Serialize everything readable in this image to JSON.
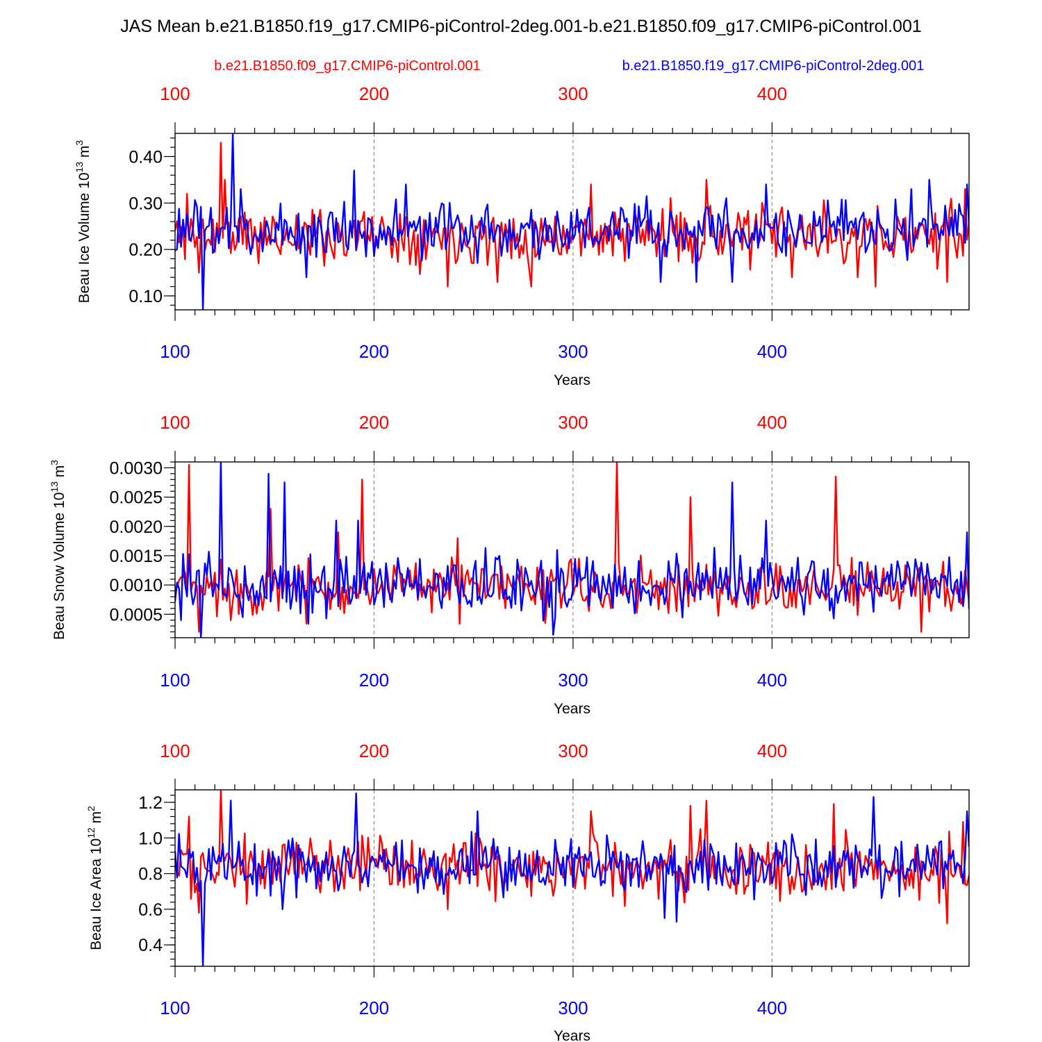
{
  "figure": {
    "title": "JAS Mean b.e21.B1850.f19_g17.CMIP6-piControl-2deg.001-b.e21.B1850.f09_g17.CMIP6-piControl.001",
    "legend": {
      "red_label": "b.e21.B1850.f09_g17.CMIP6-piControl.001",
      "blue_label": "b.e21.B1850.f19_g17.CMIP6-piControl-2deg.001"
    },
    "colors": {
      "red": "#ff0000",
      "blue": "#0000ff",
      "grid": "#777777"
    }
  },
  "chart_data": [
    {
      "type": "line",
      "name": "ice-volume",
      "ylabel_main": "Beau Ice Volume 10",
      "ylabel_exp": "13",
      "ylabel_unit": " m",
      "ylabel_unit_exp": "3",
      "xlabel": "Years",
      "xlim": [
        100,
        499
      ],
      "ylim": [
        0.07,
        0.45
      ],
      "xticks": [
        100,
        200,
        300,
        400
      ],
      "xtick_labels": [
        "100",
        "200",
        "300",
        "400"
      ],
      "yticks": [
        0.1,
        0.2,
        0.3,
        0.4
      ],
      "ytick_labels": [
        "0.10",
        "0.20",
        "0.30",
        "0.40"
      ],
      "series": [
        {
          "name": "b.e21.B1850.f09_g17.CMIP6-piControl.001",
          "color": "red",
          "base": 0.232,
          "amp": 0.045,
          "seed": 11,
          "events": [
            [
              106,
              0.32
            ],
            [
              112,
              0.15
            ],
            [
              123,
              0.43
            ],
            [
              125,
              0.35
            ],
            [
              142,
              0.17
            ],
            [
              237,
              0.12
            ],
            [
              262,
              0.13
            ],
            [
              279,
              0.12
            ],
            [
              309,
              0.34
            ],
            [
              367,
              0.35
            ],
            [
              410,
              0.14
            ],
            [
              443,
              0.14
            ],
            [
              452,
              0.12
            ],
            [
              488,
              0.13
            ],
            [
              497,
              0.33
            ]
          ]
        },
        {
          "name": "b.e21.B1850.f19_g17.CMIP6-piControl-2deg.001",
          "color": "blue",
          "base": 0.24,
          "amp": 0.045,
          "seed": 23,
          "events": [
            [
              114,
              0.07
            ],
            [
              118,
              0.29
            ],
            [
              126,
              0.29
            ],
            [
              129,
              0.45
            ],
            [
              131,
              0.25
            ],
            [
              133,
              0.33
            ],
            [
              166,
              0.14
            ],
            [
              190,
              0.37
            ],
            [
              216,
              0.34
            ],
            [
              344,
              0.13
            ],
            [
              362,
              0.13
            ],
            [
              380,
              0.13
            ],
            [
              397,
              0.34
            ],
            [
              470,
              0.33
            ],
            [
              479,
              0.35
            ],
            [
              498,
              0.34
            ]
          ]
        }
      ]
    },
    {
      "type": "line",
      "name": "snow-volume",
      "ylabel_main": "Beau Snow Volume 10",
      "ylabel_exp": "13",
      "ylabel_unit": " m",
      "ylabel_unit_exp": "3",
      "xlabel": "Years",
      "xlim": [
        100,
        499
      ],
      "ylim": [
        0.0001,
        0.0031
      ],
      "xticks": [
        100,
        200,
        300,
        400
      ],
      "xtick_labels": [
        "100",
        "200",
        "300",
        "400"
      ],
      "yticks": [
        0.0005,
        0.001,
        0.0015,
        0.002,
        0.0025,
        0.003
      ],
      "ytick_labels": [
        "0.0005",
        "0.0010",
        "0.0015",
        "0.0020",
        "0.0025",
        "0.0030"
      ],
      "series": [
        {
          "name": "b.e21.B1850.f09_g17.CMIP6-piControl.001",
          "color": "red",
          "base": 0.00095,
          "amp": 0.00035,
          "seed": 37,
          "events": [
            [
              107,
              0.00305
            ],
            [
              112,
              0.0002
            ],
            [
              148,
              0.0023
            ],
            [
              182,
              0.0019
            ],
            [
              194,
              0.0028
            ],
            [
              242,
              0.0018
            ],
            [
              322,
              0.0031
            ],
            [
              359,
              0.0025
            ],
            [
              432,
              0.00285
            ],
            [
              475,
              0.0002
            ]
          ]
        },
        {
          "name": "b.e21.B1850.f19_g17.CMIP6-piControl-2deg.001",
          "color": "blue",
          "base": 0.001,
          "amp": 0.00038,
          "seed": 53,
          "events": [
            [
              103,
              0.0004
            ],
            [
              113,
              0.0001
            ],
            [
              123,
              0.0031
            ],
            [
              147,
              0.0029
            ],
            [
              155,
              0.00275
            ],
            [
              181,
              0.0021
            ],
            [
              192,
              0.0021
            ],
            [
              290,
              0.00015
            ],
            [
              380,
              0.00275
            ],
            [
              397,
              0.0021
            ],
            [
              498,
              0.0019
            ]
          ]
        }
      ]
    },
    {
      "type": "line",
      "name": "ice-area",
      "ylabel_main": "Beau Ice Area 10",
      "ylabel_exp": "12",
      "ylabel_unit": " m",
      "ylabel_unit_exp": "2",
      "xlabel": "Years",
      "xlim": [
        100,
        499
      ],
      "ylim": [
        0.28,
        1.27
      ],
      "xticks": [
        100,
        200,
        300,
        400
      ],
      "xtick_labels": [
        "100",
        "200",
        "300",
        "400"
      ],
      "yticks": [
        0.4,
        0.6,
        0.8,
        1.0,
        1.2
      ],
      "ytick_labels": [
        "0.4",
        "0.6",
        "0.8",
        "1.0",
        "1.2"
      ],
      "series": [
        {
          "name": "b.e21.B1850.f09_g17.CMIP6-piControl.001",
          "color": "red",
          "base": 0.84,
          "amp": 0.12,
          "seed": 71,
          "events": [
            [
              107,
              1.12
            ],
            [
              112,
              0.58
            ],
            [
              123,
              1.27
            ],
            [
              136,
              0.63
            ],
            [
              237,
              0.6
            ],
            [
              309,
              1.15
            ],
            [
              359,
              1.18
            ],
            [
              367,
              1.21
            ],
            [
              431,
              1.19
            ],
            [
              488,
              0.52
            ],
            [
              496,
              1.09
            ]
          ]
        },
        {
          "name": "b.e21.B1850.f19_g17.CMIP6-piControl-2deg.001",
          "color": "blue",
          "base": 0.85,
          "amp": 0.12,
          "seed": 89,
          "events": [
            [
              114,
              0.28
            ],
            [
              119,
              0.95
            ],
            [
              128,
              1.21
            ],
            [
              154,
              0.6
            ],
            [
              191,
              1.25
            ],
            [
              252,
              1.15
            ],
            [
              346,
              0.55
            ],
            [
              352,
              0.53
            ],
            [
              451,
              1.23
            ],
            [
              498,
              1.15
            ],
            [
              499,
              0.95
            ]
          ]
        }
      ]
    }
  ]
}
